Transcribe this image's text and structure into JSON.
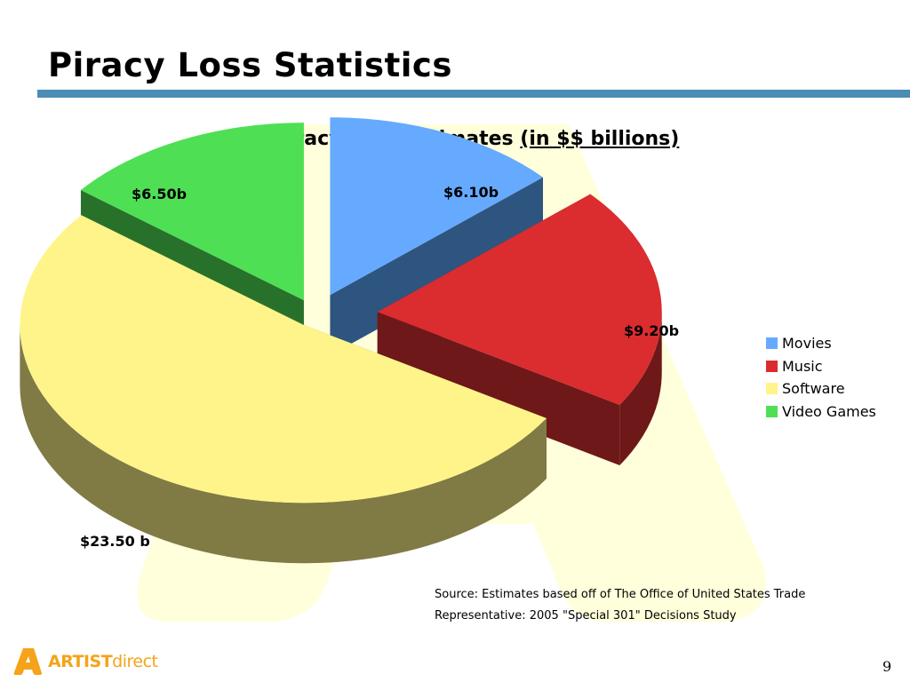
{
  "slide": {
    "title": "Piracy Loss Statistics",
    "page_number": "9",
    "accent_color": "#4a8db5",
    "watermark_color": "#ffffdc"
  },
  "chart_data": {
    "type": "pie",
    "title_main": "IPP Piracy Loss Estimates",
    "title_unit": "(in $$ billions)",
    "categories": [
      "Movies",
      "Music",
      "Software",
      "Video Games"
    ],
    "values": [
      6.1,
      9.2,
      23.5,
      6.5
    ],
    "data_labels": [
      "$6.10b",
      "$9.20b",
      "$23.50 b",
      "$6.50b"
    ],
    "colors": {
      "Movies": "#66aaff",
      "Music": "#db2c30",
      "Software": "#fff48a",
      "Video Games": "#4fdf55"
    },
    "side_colors": {
      "Movies": "#2e5580",
      "Music": "#6e1819",
      "Software": "#807a45",
      "Video Games": "#28712b"
    },
    "exploded": true,
    "three_d": true,
    "legend_position": "right"
  },
  "source": {
    "line1": "Source: Estimates based off of The Office of United States Trade",
    "line2": "Representative: 2005 \"Special 301\" Decisions Study"
  },
  "logo": {
    "text_bold": "ARTIST",
    "text_light": "direct",
    "icon": "artistdirect-a-logo"
  }
}
